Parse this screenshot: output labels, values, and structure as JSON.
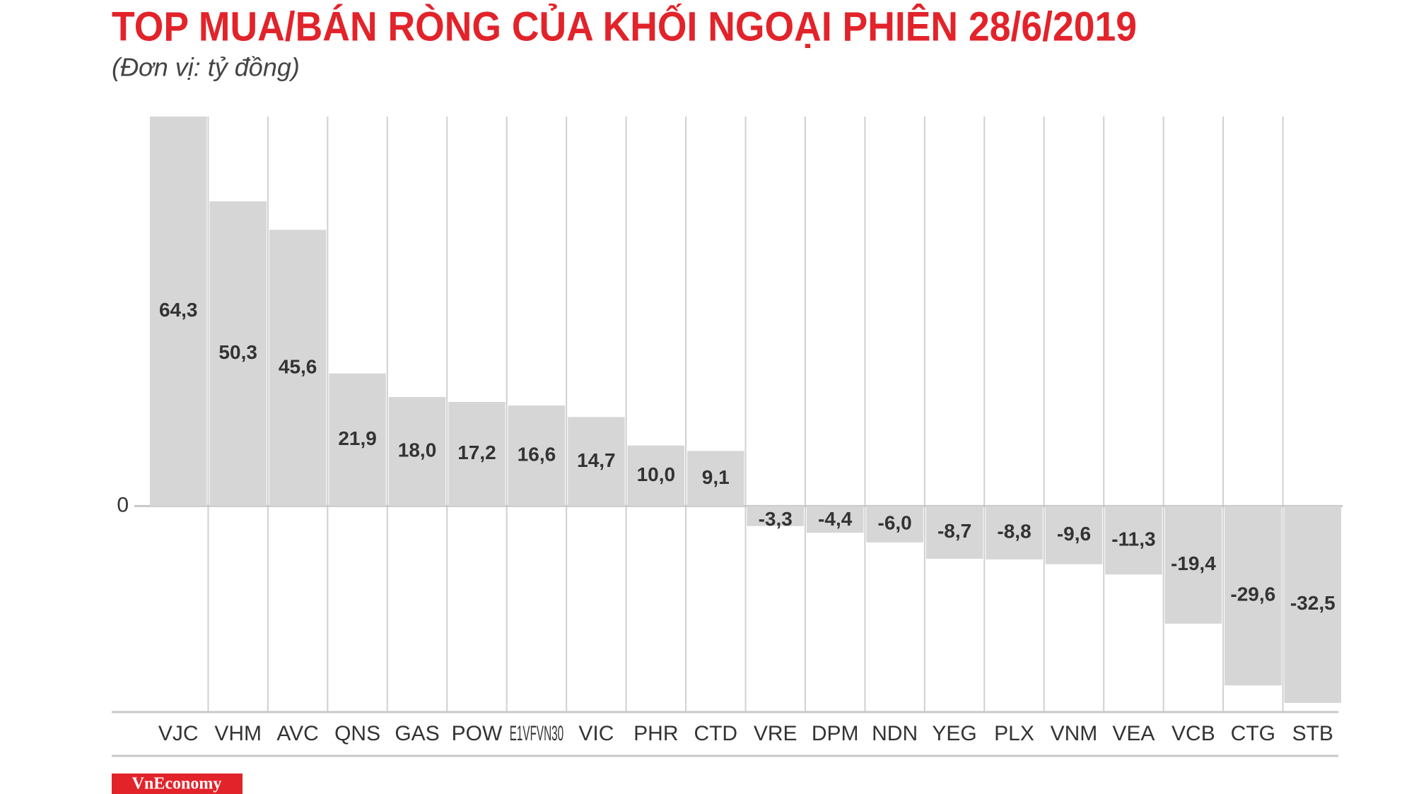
{
  "chart_data": {
    "type": "bar",
    "title": "TOP MUA/BÁN RÒNG CỦA KHỐI NGOẠI PHIÊN 28/6/2019",
    "subtitle": "(Đơn vị: tỷ đồng)",
    "source": "VnEconomy",
    "categories": [
      "VJC",
      "VHM",
      "AVC",
      "QNS",
      "GAS",
      "POW",
      "E1VFVN30",
      "VIC",
      "PHR",
      "CTD",
      "VRE",
      "DPM",
      "NDN",
      "YEG",
      "PLX",
      "VNM",
      "VEA",
      "VCB",
      "CTG",
      "STB"
    ],
    "values": [
      64.3,
      50.3,
      45.6,
      21.9,
      18.0,
      17.2,
      16.6,
      14.7,
      10.0,
      9.1,
      -3.3,
      -4.4,
      -6.0,
      -8.7,
      -8.8,
      -9.6,
      -11.3,
      -19.4,
      -29.6,
      -32.5
    ],
    "value_labels": [
      "64,3",
      "50,3",
      "45,6",
      "21,9",
      "18,0",
      "17,2",
      "16,6",
      "14,7",
      "10,0",
      "9,1",
      "-3,3",
      "-4,4",
      "-6,0",
      "-8,7",
      "-8,8",
      "-9,6",
      "-11,3",
      "-19,4",
      "-29,6",
      "-32,5"
    ],
    "color": "#d6d6d6",
    "ylim": [
      -34,
      64.3
    ],
    "yticks": [
      0
    ]
  }
}
